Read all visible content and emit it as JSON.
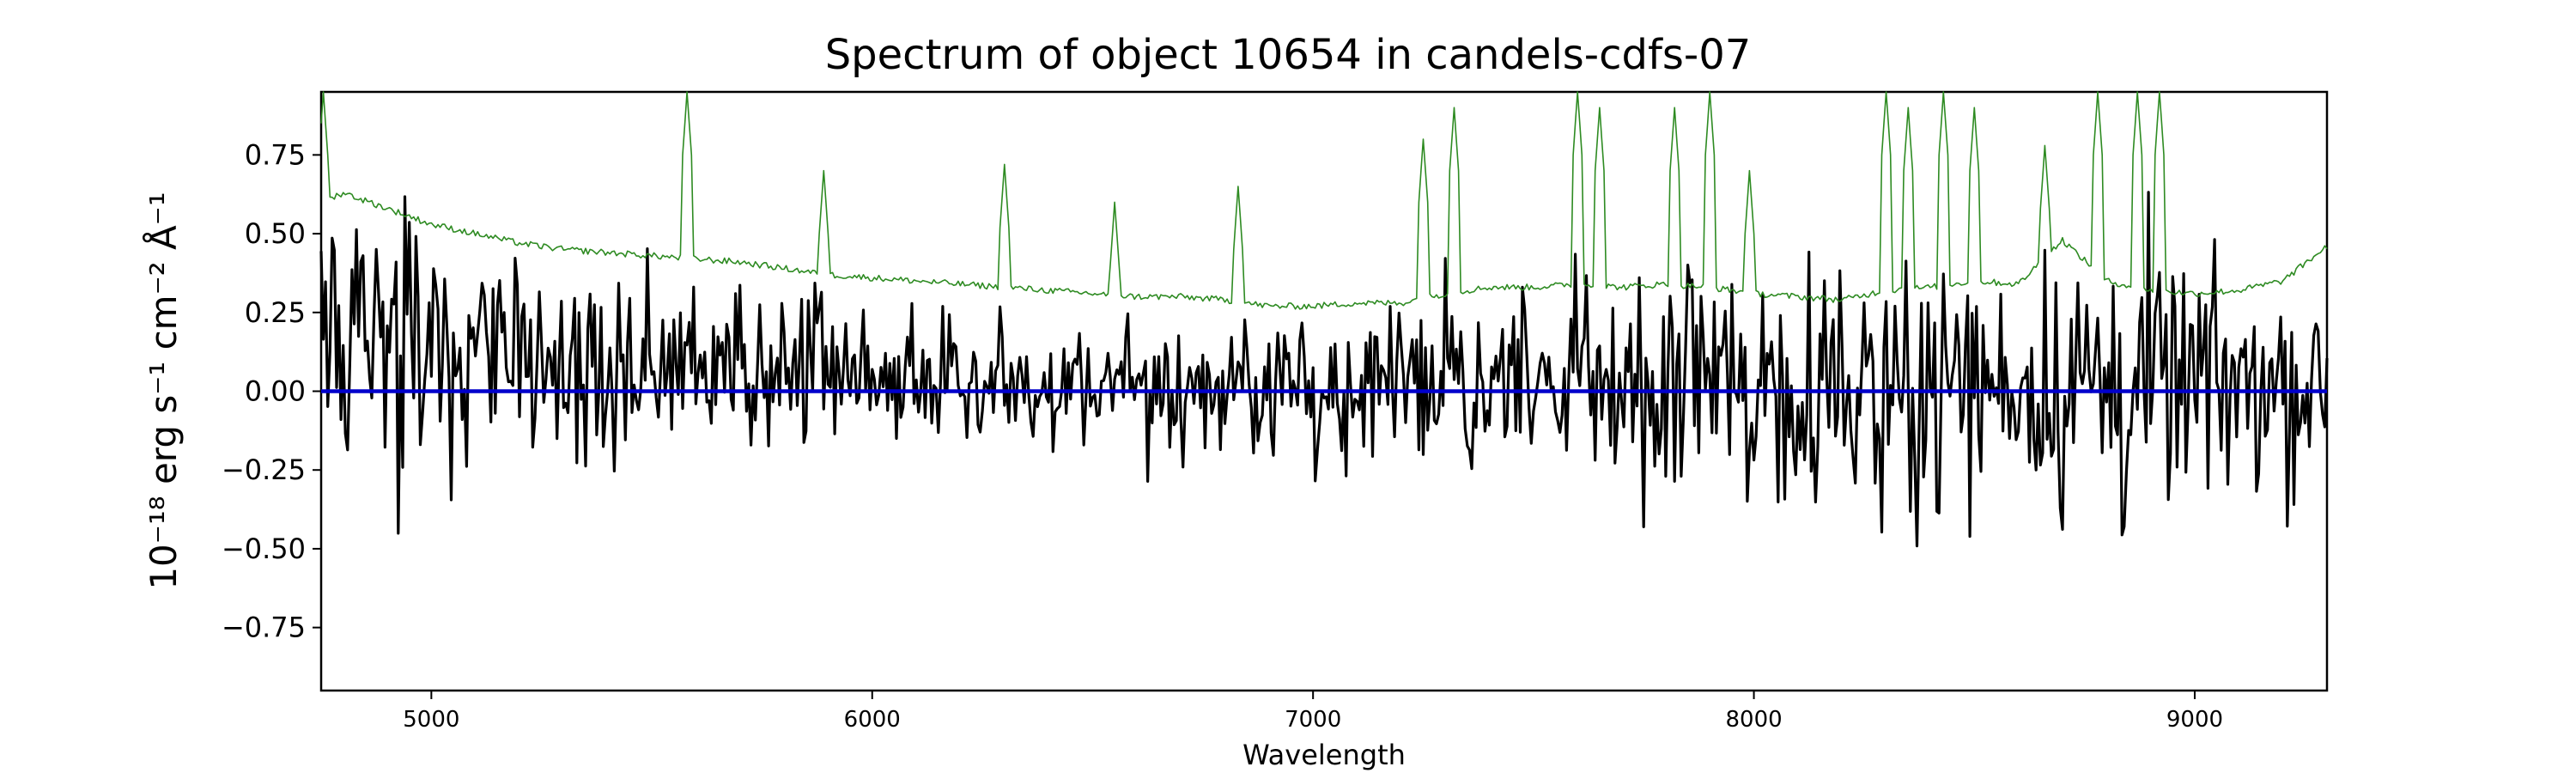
{
  "chart_data": {
    "type": "line",
    "title": "Spectrum of object 10654 in candels-cdfs-07",
    "xlabel": "Wavelength",
    "ylabel": "10⁻¹⁸ erg s⁻¹ cm⁻² Å⁻¹",
    "xlim": [
      4750,
      9300
    ],
    "ylim": [
      -0.95,
      0.95
    ],
    "xticks": [
      5000,
      6000,
      7000,
      8000,
      9000
    ],
    "yticks": [
      -0.75,
      -0.5,
      -0.25,
      0.0,
      0.25,
      0.5,
      0.75
    ],
    "ytick_labels": [
      "−0.75",
      "−0.50",
      "−0.25",
      "0.00",
      "0.25",
      "0.50",
      "0.75"
    ],
    "grid": false,
    "legend": "none",
    "series": [
      {
        "role": "flux",
        "color": "#000000",
        "style": "noisy",
        "x": [
          4750,
          4800,
          4900,
          5000,
          5100,
          5200,
          5300,
          5400,
          5500,
          5600,
          5700,
          5800,
          5900,
          6000,
          6100,
          6200,
          6300,
          6400,
          6500,
          6600,
          6700,
          6800,
          6900,
          7000,
          7100,
          7200,
          7300,
          7400,
          7500,
          7600,
          7700,
          7800,
          7900,
          8000,
          8100,
          8200,
          8300,
          8400,
          8500,
          8600,
          8700,
          8800,
          8900,
          9000,
          9100,
          9200,
          9300
        ],
        "y": [
          0.2,
          0.25,
          0.2,
          0.12,
          0.12,
          0.1,
          0.08,
          0.08,
          0.07,
          0.07,
          0.06,
          0.06,
          0.06,
          0.05,
          0.04,
          0.04,
          0.03,
          0.02,
          0.02,
          0.02,
          0.02,
          0.02,
          0.02,
          0.02,
          0.02,
          0.02,
          0.02,
          0.02,
          0.02,
          0.02,
          0.02,
          0.02,
          0.02,
          0.02,
          0.02,
          0.02,
          0.02,
          0.02,
          0.02,
          0.02,
          0.02,
          0.02,
          0.02,
          0.02,
          0.02,
          0.02,
          0.02
        ],
        "noise": [
          0.35,
          0.35,
          0.32,
          0.27,
          0.25,
          0.22,
          0.2,
          0.2,
          0.19,
          0.18,
          0.18,
          0.17,
          0.18,
          0.17,
          0.17,
          0.16,
          0.15,
          0.14,
          0.14,
          0.15,
          0.15,
          0.15,
          0.15,
          0.15,
          0.15,
          0.15,
          0.18,
          0.2,
          0.22,
          0.24,
          0.28,
          0.3,
          0.26,
          0.24,
          0.22,
          0.22,
          0.26,
          0.28,
          0.25,
          0.22,
          0.3,
          0.38,
          0.3,
          0.25,
          0.22,
          0.22,
          0.22
        ]
      },
      {
        "role": "error",
        "color": "#2e8b22",
        "style": "thin",
        "x": [
          4750,
          4800,
          4900,
          5000,
          5100,
          5200,
          5300,
          5400,
          5500,
          5600,
          5700,
          5800,
          5900,
          6000,
          6100,
          6200,
          6300,
          6400,
          6500,
          6600,
          6700,
          6800,
          6900,
          7000,
          7100,
          7200,
          7300,
          7400,
          7500,
          7600,
          7700,
          7800,
          7900,
          8000,
          8100,
          8200,
          8300,
          8400,
          8500,
          8600,
          8700,
          8800,
          8900,
          9000,
          9100,
          9200,
          9300
        ],
        "y": [
          0.6,
          0.63,
          0.58,
          0.53,
          0.5,
          0.47,
          0.45,
          0.44,
          0.43,
          0.42,
          0.41,
          0.39,
          0.37,
          0.36,
          0.35,
          0.34,
          0.33,
          0.32,
          0.31,
          0.3,
          0.3,
          0.29,
          0.27,
          0.27,
          0.28,
          0.28,
          0.31,
          0.33,
          0.33,
          0.34,
          0.33,
          0.34,
          0.33,
          0.31,
          0.3,
          0.29,
          0.32,
          0.33,
          0.35,
          0.34,
          0.48,
          0.35,
          0.32,
          0.31,
          0.32,
          0.35,
          0.46
        ],
        "spikes": [
          [
            4755,
            0.95
          ],
          [
            5580,
            0.95
          ],
          [
            5890,
            0.7
          ],
          [
            6300,
            0.72
          ],
          [
            6550,
            0.6
          ],
          [
            6830,
            0.65
          ],
          [
            7250,
            0.8
          ],
          [
            7320,
            0.9
          ],
          [
            7600,
            0.95
          ],
          [
            7650,
            0.9
          ],
          [
            7820,
            0.9
          ],
          [
            7900,
            0.95
          ],
          [
            7990,
            0.7
          ],
          [
            8300,
            0.95
          ],
          [
            8350,
            0.9
          ],
          [
            8430,
            0.95
          ],
          [
            8500,
            0.9
          ],
          [
            8660,
            0.78
          ],
          [
            8780,
            0.95
          ],
          [
            8870,
            0.95
          ],
          [
            8920,
            0.95
          ]
        ]
      },
      {
        "role": "zero",
        "color": "#0000cc",
        "style": "thick",
        "x": [
          4750,
          9300
        ],
        "y": [
          0.0,
          0.0
        ]
      }
    ]
  }
}
